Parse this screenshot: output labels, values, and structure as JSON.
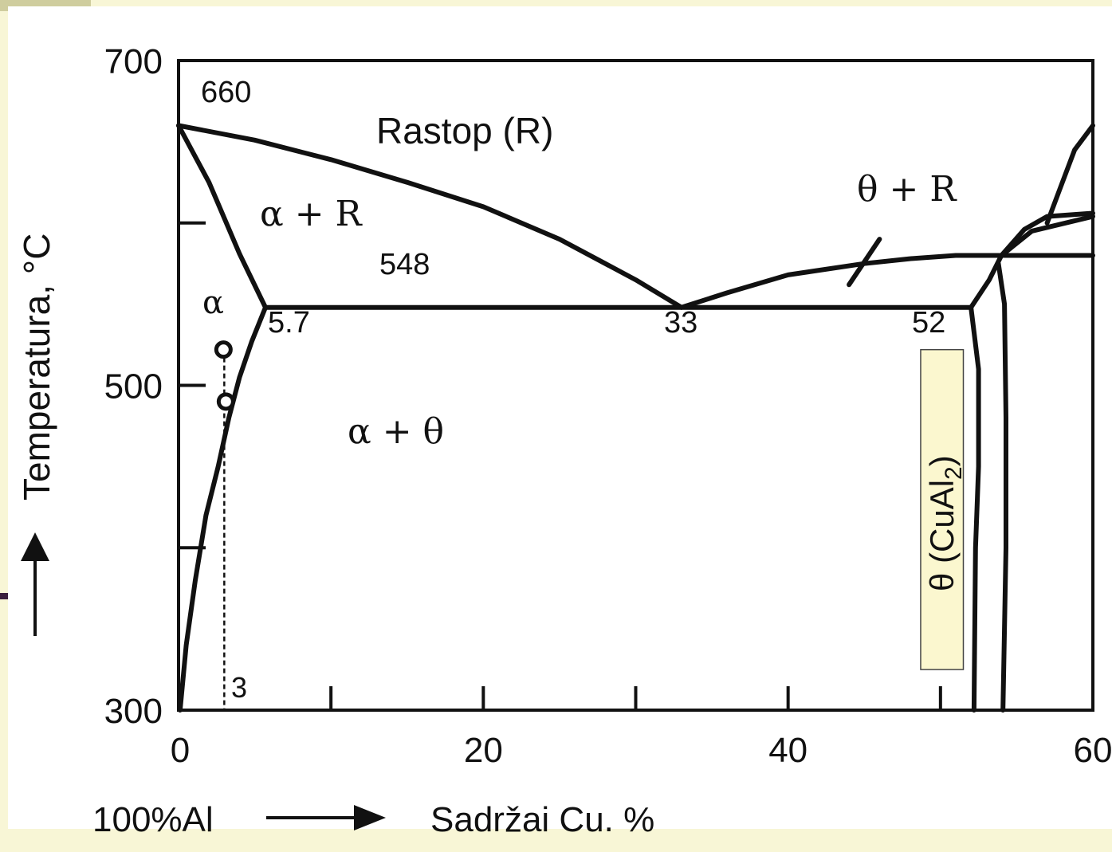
{
  "colors": {
    "slide_background": "#f8f6d6",
    "slide_accent_bar": "#cfcd9e",
    "slide_purple_rule": "#3a1f3c",
    "plot_background": "#ffffff",
    "line": "#111111",
    "label_box_fill": "#fbf7cf"
  },
  "diagram": {
    "type": "phase-diagram",
    "axes": {
      "x_range": [
        0,
        60
      ],
      "y_range": [
        300,
        700
      ],
      "x_ticks": [
        0,
        20,
        40,
        60
      ],
      "x_minor_ticks": [
        10,
        30,
        50
      ],
      "y_ticks": [
        300,
        500,
        700
      ],
      "y_minor_ticks": [
        400,
        600
      ],
      "x_tick_labels": [
        "0",
        "20",
        "40",
        "60"
      ],
      "y_tick_labels": [
        "300",
        "500",
        "700"
      ]
    },
    "x_label_start": "100%Al",
    "x_label": "Sadržai Cu.  %",
    "y_label": "Temperatura,  °C",
    "region_labels": {
      "melt": "Rastop (R)",
      "alpha_plus_melt": "α + R",
      "alpha": "α",
      "alpha_plus_theta": "α + θ",
      "theta_plus_melt": "θ + R"
    },
    "theta_phase_label": "θ (CuAl",
    "theta_phase_subscript": "2",
    "theta_phase_close": ")",
    "point_labels": {
      "al_melting": "660",
      "eutectic_temp": "548",
      "alpha_max_solubility": "5.7",
      "eutectic_composition": "33",
      "theta_composition": "52",
      "alloy_composition": "3"
    },
    "key_points": {
      "al_melting_point": {
        "x": 0,
        "y": 660
      },
      "eutectic_point": {
        "x": 33,
        "y": 548
      },
      "alpha_max_solubility": {
        "x": 5.7,
        "y": 548
      },
      "theta_left_at_eutectic": {
        "x": 52,
        "y": 548
      }
    },
    "alloy_line": {
      "x": 3,
      "markers": [
        {
          "x": 3,
          "y": 522
        },
        {
          "x": 3,
          "y": 490
        }
      ]
    },
    "curves": {
      "liquidus_al": [
        [
          0,
          660
        ],
        [
          5,
          651
        ],
        [
          10,
          639
        ],
        [
          15,
          625
        ],
        [
          20,
          610
        ],
        [
          25,
          590
        ],
        [
          30,
          565
        ],
        [
          33,
          548
        ]
      ],
      "solidus_al": [
        [
          0,
          660
        ],
        [
          2,
          625
        ],
        [
          4,
          581
        ],
        [
          5.7,
          548
        ]
      ],
      "solvus_al": [
        [
          5.7,
          548
        ],
        [
          4.8,
          527
        ],
        [
          4,
          505
        ],
        [
          3.3,
          480
        ],
        [
          2.6,
          450
        ],
        [
          1.8,
          420
        ],
        [
          1.1,
          380
        ],
        [
          0.5,
          340
        ],
        [
          0.1,
          300
        ]
      ],
      "eutectic_isotherm": [
        [
          5.7,
          548
        ],
        [
          52,
          548
        ]
      ],
      "liquidus_theta": [
        [
          33,
          548
        ],
        [
          36,
          557
        ],
        [
          40,
          568
        ],
        [
          45,
          575
        ],
        [
          48,
          578
        ],
        [
          51,
          580
        ],
        [
          55,
          580
        ],
        [
          60,
          580
        ]
      ],
      "theta_left": [
        [
          52,
          548
        ],
        [
          52.5,
          510
        ],
        [
          52.5,
          450
        ],
        [
          52.3,
          400
        ],
        [
          52.2,
          300
        ]
      ],
      "theta_right": [
        [
          52,
          548
        ],
        [
          53.2,
          565
        ],
        [
          54,
          580
        ],
        [
          56,
          595
        ],
        [
          60,
          604
        ]
      ],
      "theta_right_lower": [
        [
          53.8,
          575
        ],
        [
          54.2,
          550
        ],
        [
          54.3,
          480
        ],
        [
          54.3,
          400
        ],
        [
          54.1,
          300
        ]
      ],
      "upper_curve": [
        [
          57,
          600
        ],
        [
          57.8,
          620
        ],
        [
          58.8,
          645
        ],
        [
          60,
          660
        ]
      ],
      "upper_curve_b": [
        [
          54,
          580
        ],
        [
          55.5,
          596
        ],
        [
          57,
          604
        ],
        [
          60,
          606
        ]
      ],
      "theta_melt_tieline": [
        [
          44,
          562
        ],
        [
          46,
          590
        ]
      ]
    },
    "theta_box": {
      "x_range": [
        48.7,
        51.5
      ],
      "y_range": [
        325,
        522
      ]
    }
  }
}
